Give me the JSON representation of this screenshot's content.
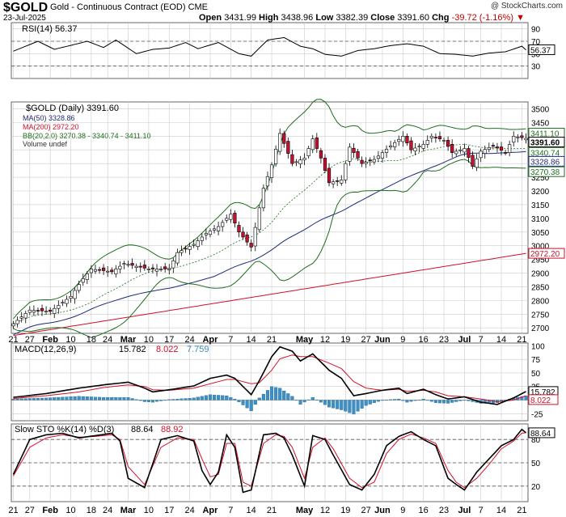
{
  "header": {
    "symbol": "$GOLD",
    "name": "Gold - Continuous Contract (EOD)",
    "exchange": "CME",
    "date": "23-Jul-2025",
    "watermark": "@ StockCharts.com",
    "open_label": "Open",
    "open": "3431.99",
    "high_label": "High",
    "high": "3438.96",
    "low_label": "Low",
    "low": "3382.39",
    "close_label": "Close",
    "close": "3391.60",
    "chg_label": "Chg",
    "chg": "-39.72 (-1.16%)"
  },
  "colors": {
    "up": "#ffffff",
    "down": "#c8102e",
    "ma50": "#1f2a7a",
    "ma200": "#d0102a",
    "bb": "#1e6e1e",
    "macd_hist": "#3d8fc4",
    "signal": "#d0102a",
    "grid": "#cccccc"
  },
  "x_axis": {
    "labels": [
      "21",
      "27",
      "Feb",
      "10",
      "18",
      "24",
      "Mar",
      "10",
      "17",
      "24",
      "Apr",
      "7",
      "14",
      "21",
      "May",
      "12",
      "19",
      "27",
      "Jun",
      "9",
      "16",
      "23",
      "Jul",
      "7",
      "14",
      "21"
    ],
    "label_index": [
      0,
      4,
      9,
      14,
      19,
      23,
      28,
      33,
      38,
      43,
      48,
      53,
      58,
      63,
      71,
      76,
      81,
      86,
      90,
      95,
      100,
      105,
      110,
      114,
      119,
      124
    ]
  },
  "rsi_panel": {
    "legend": "RSI(14) 56.37",
    "last": "56.37",
    "ticks": [
      "90",
      "70",
      "50",
      "30"
    ],
    "ylim": [
      10,
      100
    ],
    "levels": [
      70,
      30
    ]
  },
  "price_panel": {
    "legend_title": "$GOLD (Daily) 3391.60",
    "legend_ma50": "MA(50) 3328.86",
    "legend_ma200": "MA(200) 2972.20",
    "legend_bb": "BB(20,2.0) 3270.38 - 3340.74 - 3411.10",
    "legend_volume": "Volume undef",
    "ticks": [
      "3500",
      "3450",
      "3400",
      "3350",
      "3300",
      "3250",
      "3200",
      "3150",
      "3100",
      "3050",
      "3000",
      "2950",
      "2900",
      "2850",
      "2800",
      "2750",
      "2700"
    ],
    "ylim": [
      2680,
      3525
    ],
    "tags": [
      {
        "label": "3411.10",
        "value": 3411.1,
        "color": "#1e6e1e"
      },
      {
        "label": "3391.60",
        "value": 3391.6,
        "color": "#000000"
      },
      {
        "label": "3340.74",
        "value": 3340.74,
        "color": "#1e6e1e"
      },
      {
        "label": "3328.86",
        "value": 3328.86,
        "color": "#1f2a7a"
      },
      {
        "label": "3270.38",
        "value": 3270.38,
        "color": "#1e6e1e"
      },
      {
        "label": "2972.20",
        "value": 2972.2,
        "color": "#d0102a"
      }
    ]
  },
  "macd_panel": {
    "legend_name": "MACD(12,26,9)",
    "legend_macd": "15.782",
    "legend_signal": "8.022",
    "legend_hist": "7.759",
    "ticks": [
      "100",
      "75",
      "50",
      "25",
      "-25"
    ],
    "ylim": [
      -38,
      105
    ],
    "tags": [
      {
        "label": "15.782",
        "value": 15.782,
        "color": "#000000"
      },
      {
        "label": "8.022",
        "value": 8.022,
        "color": "#d0102a"
      }
    ]
  },
  "sto_panel": {
    "legend_name": "Slow STO %K(14) %D(3)",
    "legend_k": "88.64",
    "legend_d": "88.92",
    "ticks": [
      "80",
      "50",
      "20"
    ],
    "ylim": [
      0,
      100
    ],
    "levels": [
      80,
      50,
      20
    ],
    "last": "88.64"
  },
  "chart_data": {
    "type": "candlestick",
    "title": "$GOLD (Daily) 3391.60",
    "anchors_index": [
      0,
      4,
      9,
      14,
      17,
      19,
      24,
      27,
      33,
      38,
      40,
      44,
      47,
      50,
      53,
      55,
      58,
      61,
      63,
      65,
      68,
      71,
      73,
      75,
      77,
      80,
      82,
      85,
      88,
      92,
      95,
      97,
      100,
      102,
      105,
      107,
      110,
      112,
      114,
      117,
      120,
      122,
      125
    ],
    "anchors_close": [
      2715,
      2765,
      2760,
      2815,
      2880,
      2915,
      2905,
      2935,
      2915,
      2915,
      2975,
      3005,
      3045,
      3070,
      3115,
      3050,
      2995,
      3210,
      3295,
      3410,
      3300,
      3320,
      3390,
      3320,
      3230,
      3240,
      3360,
      3300,
      3315,
      3365,
      3400,
      3350,
      3370,
      3400,
      3385,
      3340,
      3355,
      3290,
      3345,
      3365,
      3340,
      3400,
      3392
    ],
    "rsi_anchors_index": [
      0,
      6,
      10,
      15,
      18,
      22,
      25,
      30,
      34,
      38,
      42,
      45,
      50,
      55,
      58,
      62,
      66,
      70,
      73,
      76,
      80,
      84,
      88,
      92,
      96,
      100,
      104,
      108,
      112,
      116,
      120,
      124,
      125
    ],
    "rsi_anchors": [
      54,
      70,
      57,
      65,
      70,
      60,
      72,
      50,
      57,
      59,
      68,
      58,
      68,
      50,
      46,
      72,
      76,
      62,
      58,
      49,
      46,
      55,
      58,
      63,
      66,
      62,
      50,
      49,
      46,
      51,
      53,
      62,
      56
    ],
    "macd_index": [
      0,
      8,
      16,
      22,
      28,
      32,
      34,
      38,
      44,
      48,
      52,
      54,
      58,
      60,
      63,
      65,
      68,
      70,
      73,
      77,
      80,
      83,
      86,
      90,
      94,
      96,
      100,
      103,
      106,
      110,
      114,
      118,
      122,
      125
    ],
    "macd": [
      5,
      12,
      22,
      28,
      33,
      22,
      15,
      19,
      26,
      40,
      46,
      40,
      10,
      36,
      80,
      98,
      90,
      72,
      85,
      55,
      40,
      8,
      12,
      18,
      22,
      12,
      20,
      10,
      2,
      6,
      -4,
      -8,
      4,
      15.8
    ],
    "signal": [
      3,
      8,
      15,
      23,
      28,
      25,
      19,
      18,
      22,
      30,
      38,
      38,
      30,
      32,
      55,
      76,
      83,
      80,
      80,
      68,
      58,
      34,
      22,
      18,
      20,
      16,
      18,
      15,
      8,
      6,
      2,
      -3,
      0,
      8
    ],
    "sto_index": [
      0,
      4,
      8,
      12,
      16,
      20,
      24,
      26,
      28,
      32,
      36,
      40,
      44,
      46,
      48,
      50,
      52,
      54,
      56,
      58,
      61,
      64,
      66,
      68,
      71,
      73,
      76,
      78,
      82,
      85,
      88,
      91,
      94,
      97,
      100,
      103,
      106,
      108,
      110,
      113,
      116,
      119,
      122,
      124,
      125
    ],
    "sto_k": [
      35,
      80,
      86,
      88,
      82,
      85,
      88,
      78,
      30,
      18,
      80,
      85,
      78,
      40,
      22,
      38,
      86,
      70,
      12,
      15,
      86,
      88,
      82,
      60,
      20,
      85,
      80,
      60,
      22,
      15,
      35,
      72,
      84,
      90,
      80,
      72,
      30,
      22,
      15,
      38,
      55,
      72,
      80,
      93,
      88.6
    ],
    "sto_d": [
      33,
      70,
      82,
      86,
      83,
      84,
      86,
      80,
      45,
      22,
      70,
      82,
      80,
      55,
      32,
      35,
      75,
      75,
      25,
      20,
      75,
      86,
      84,
      70,
      30,
      70,
      82,
      68,
      30,
      18,
      25,
      62,
      80,
      87,
      82,
      75,
      40,
      25,
      18,
      30,
      48,
      68,
      78,
      88,
      88.9
    ]
  }
}
